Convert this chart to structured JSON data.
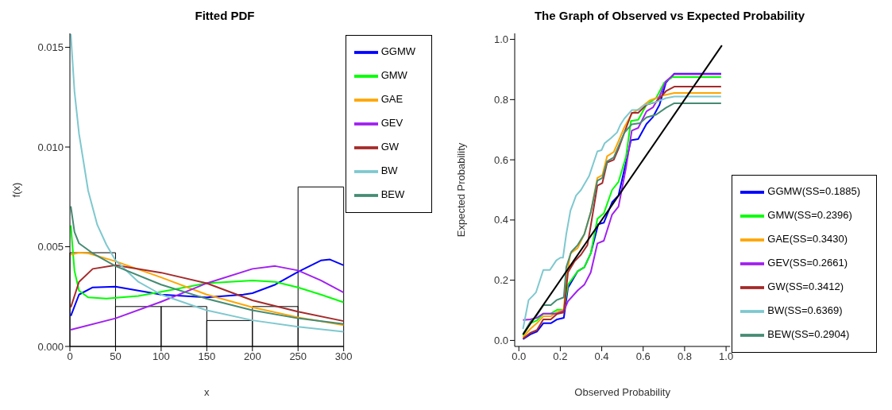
{
  "chart_data": [
    {
      "type": "histogram",
      "title": "Fitted PDF",
      "xlabel": "x",
      "ylabel": "f(x)",
      "bins": [
        0,
        50,
        100,
        150,
        200,
        250,
        300
      ],
      "values": [
        0.0047,
        0.002,
        0.002,
        0.0013,
        0.002,
        0.008
      ],
      "color": "#000000",
      "xlim": [
        0,
        300
      ],
      "xticks": [
        0,
        50,
        100,
        150,
        200,
        250,
        300
      ],
      "ylim": [
        0,
        0.0157
      ],
      "yticks": [
        {
          "value": 0,
          "label": "0.000"
        },
        {
          "value": 0.005,
          "label": "0.005"
        },
        {
          "value": 0.01,
          "label": "0.010"
        },
        {
          "value": 0.015,
          "label": "0.015"
        }
      ],
      "legend": "top right",
      "series": [
        {
          "type": "line",
          "name": "GGMW",
          "color": "#0000ff",
          "x": [
            1,
            10,
            25,
            50,
            100,
            150,
            190,
            200,
            225,
            250,
            275,
            285,
            300
          ],
          "values": [
            0.00153,
            0.0026,
            0.00296,
            0.003,
            0.0026,
            0.00246,
            0.0026,
            0.00267,
            0.0031,
            0.00374,
            0.00431,
            0.00436,
            0.00407
          ]
        },
        {
          "type": "line",
          "name": "GMW",
          "color": "#00ff00",
          "x": [
            1,
            5,
            10,
            20,
            40,
            75,
            100,
            150,
            200,
            225,
            250,
            275,
            300
          ],
          "values": [
            0.00607,
            0.0038,
            0.0028,
            0.00246,
            0.0024,
            0.00253,
            0.00274,
            0.00317,
            0.00331,
            0.00324,
            0.00296,
            0.0026,
            0.00221
          ]
        },
        {
          "type": "line",
          "name": "GAE",
          "color": "#ffa500",
          "x": [
            1,
            10,
            20,
            50,
            100,
            150,
            200,
            250,
            300
          ],
          "values": [
            0.0046,
            0.0047,
            0.00467,
            0.00427,
            0.00346,
            0.0026,
            0.00196,
            0.00146,
            0.00107
          ]
        },
        {
          "type": "line",
          "name": "GEV",
          "color": "#a020f0",
          "x": [
            1,
            50,
            100,
            150,
            200,
            225,
            250,
            275,
            300
          ],
          "values": [
            0.00084,
            0.00141,
            0.00224,
            0.00317,
            0.00389,
            0.00403,
            0.00381,
            0.00331,
            0.0027
          ]
        },
        {
          "type": "line",
          "name": "GW",
          "color": "#a52a2a",
          "x": [
            1,
            10,
            25,
            50,
            100,
            150,
            200,
            250,
            300
          ],
          "values": [
            0.00196,
            0.00324,
            0.00389,
            0.00407,
            0.0037,
            0.00317,
            0.00231,
            0.00174,
            0.00127
          ]
        },
        {
          "type": "line",
          "name": "BW",
          "color": "#7ec8cf",
          "x": [
            1,
            5,
            10,
            20,
            30,
            40,
            50,
            75,
            100,
            150,
            200,
            250,
            300
          ],
          "values": [
            0.01567,
            0.0128,
            0.01067,
            0.00781,
            0.0061,
            0.0051,
            0.00431,
            0.00324,
            0.0026,
            0.00181,
            0.00131,
            0.00099,
            0.00074
          ]
        },
        {
          "type": "line",
          "name": "BEW",
          "color": "#458b74",
          "x": [
            1,
            5,
            10,
            25,
            50,
            100,
            150,
            200,
            250,
            300
          ],
          "values": [
            0.00703,
            0.00574,
            0.00517,
            0.00467,
            0.00403,
            0.0031,
            0.00239,
            0.00181,
            0.00141,
            0.00113
          ]
        }
      ]
    },
    {
      "type": "line",
      "title": "The Graph of Observed vs Expected Probability",
      "xlabel": "Observed Probability",
      "ylabel": "Expected Probability",
      "xlim": [
        -0.02,
        1.02
      ],
      "xticks": [
        {
          "value": 0,
          "label": "0.0"
        },
        {
          "value": 0.2,
          "label": "0.2"
        },
        {
          "value": 0.4,
          "label": "0.4"
        },
        {
          "value": 0.6,
          "label": "0.6"
        },
        {
          "value": 0.8,
          "label": "0.8"
        },
        {
          "value": 1,
          "label": "1.0"
        }
      ],
      "ylim": [
        -0.02,
        1.02
      ],
      "yticks": [
        {
          "value": 0,
          "label": "0.0"
        },
        {
          "value": 0.2,
          "label": "0.2"
        },
        {
          "value": 0.4,
          "label": "0.4"
        },
        {
          "value": 0.6,
          "label": "0.6"
        },
        {
          "value": 0.8,
          "label": "0.8"
        },
        {
          "value": 1,
          "label": "1.0"
        }
      ],
      "legend": "bottom right",
      "series": [
        {
          "name": "GGMW(SS=0.1885)",
          "color": "#0000ff",
          "x": [
            0.02,
            0.055,
            0.087,
            0.118,
            0.154,
            0.185,
            0.217,
            0.237,
            0.284,
            0.316,
            0.347,
            0.383,
            0.41,
            0.45,
            0.481,
            0.517,
            0.541,
            0.576,
            0.616,
            0.647,
            0.679,
            0.71,
            0.75,
            0.976
          ],
          "values": [
            0.004,
            0.02,
            0.029,
            0.057,
            0.057,
            0.07,
            0.075,
            0.175,
            0.23,
            0.243,
            0.289,
            0.386,
            0.391,
            0.459,
            0.482,
            0.591,
            0.665,
            0.669,
            0.719,
            0.742,
            0.783,
            0.857,
            0.886,
            0.886
          ]
        },
        {
          "name": "GMW(SS=0.2396)",
          "color": "#00ff00",
          "x": [
            0.02,
            0.055,
            0.087,
            0.118,
            0.154,
            0.185,
            0.217,
            0.237,
            0.284,
            0.316,
            0.347,
            0.379,
            0.41,
            0.45,
            0.481,
            0.517,
            0.541,
            0.576,
            0.616,
            0.663,
            0.702,
            0.742,
            0.976
          ],
          "values": [
            0.016,
            0.057,
            0.066,
            0.089,
            0.089,
            0.102,
            0.102,
            0.185,
            0.23,
            0.243,
            0.289,
            0.404,
            0.422,
            0.5,
            0.527,
            0.61,
            0.729,
            0.733,
            0.783,
            0.806,
            0.857,
            0.875,
            0.875
          ]
        },
        {
          "name": "GAE(SS=0.3430)",
          "color": "#ffa500",
          "x": [
            0.02,
            0.055,
            0.087,
            0.118,
            0.154,
            0.182,
            0.217,
            0.229,
            0.249,
            0.284,
            0.316,
            0.347,
            0.379,
            0.403,
            0.426,
            0.458,
            0.481,
            0.509,
            0.545,
            0.584,
            0.631,
            0.702,
            0.75,
            0.976
          ],
          "values": [
            0.011,
            0.038,
            0.057,
            0.08,
            0.08,
            0.093,
            0.103,
            0.207,
            0.289,
            0.307,
            0.353,
            0.426,
            0.54,
            0.549,
            0.612,
            0.626,
            0.662,
            0.708,
            0.753,
            0.771,
            0.797,
            0.815,
            0.822,
            0.822
          ]
        },
        {
          "name": "GEV(SS=0.2661)",
          "color": "#a020f0",
          "x": [
            0.02,
            0.055,
            0.087,
            0.118,
            0.154,
            0.185,
            0.217,
            0.237,
            0.284,
            0.316,
            0.347,
            0.379,
            0.41,
            0.45,
            0.481,
            0.517,
            0.545,
            0.576,
            0.616,
            0.647,
            0.679,
            0.71,
            0.75,
            0.976
          ],
          "values": [
            0.068,
            0.07,
            0.075,
            0.089,
            0.089,
            0.089,
            0.098,
            0.13,
            0.166,
            0.185,
            0.226,
            0.322,
            0.331,
            0.418,
            0.445,
            0.573,
            0.697,
            0.706,
            0.761,
            0.774,
            0.811,
            0.861,
            0.884,
            0.884
          ]
        },
        {
          "name": "GW(SS=0.3412)",
          "color": "#a52a2a",
          "x": [
            0.02,
            0.055,
            0.087,
            0.118,
            0.154,
            0.185,
            0.217,
            0.237,
            0.268,
            0.3,
            0.331,
            0.347,
            0.379,
            0.403,
            0.426,
            0.458,
            0.481,
            0.509,
            0.545,
            0.576,
            0.616,
            0.663,
            0.71,
            0.75,
            0.976
          ],
          "values": [
            0.006,
            0.025,
            0.034,
            0.07,
            0.07,
            0.088,
            0.093,
            0.226,
            0.262,
            0.285,
            0.317,
            0.381,
            0.514,
            0.523,
            0.591,
            0.6,
            0.637,
            0.69,
            0.756,
            0.756,
            0.783,
            0.792,
            0.828,
            0.843,
            0.843
          ]
        },
        {
          "name": "BW(SS=0.6369)",
          "color": "#7ec8cf",
          "x": [
            0.02,
            0.047,
            0.067,
            0.083,
            0.118,
            0.15,
            0.181,
            0.201,
            0.213,
            0.229,
            0.249,
            0.276,
            0.3,
            0.339,
            0.379,
            0.399,
            0.414,
            0.446,
            0.474,
            0.489,
            0.509,
            0.545,
            0.576,
            0.608,
            0.663,
            0.71,
            0.75,
            0.976
          ],
          "values": [
            0.038,
            0.134,
            0.148,
            0.16,
            0.234,
            0.234,
            0.266,
            0.275,
            0.275,
            0.354,
            0.431,
            0.481,
            0.5,
            0.546,
            0.628,
            0.632,
            0.655,
            0.673,
            0.691,
            0.715,
            0.737,
            0.765,
            0.765,
            0.783,
            0.792,
            0.805,
            0.81,
            0.81
          ]
        },
        {
          "name": "BEW(SS=0.2904)",
          "color": "#458b74",
          "x": [
            0.02,
            0.055,
            0.083,
            0.118,
            0.154,
            0.182,
            0.217,
            0.229,
            0.253,
            0.284,
            0.316,
            0.347,
            0.379,
            0.403,
            0.426,
            0.458,
            0.481,
            0.509,
            0.545,
            0.584,
            0.616,
            0.663,
            0.71,
            0.75,
            0.976
          ],
          "values": [
            0.02,
            0.061,
            0.08,
            0.117,
            0.117,
            0.134,
            0.143,
            0.244,
            0.294,
            0.317,
            0.353,
            0.426,
            0.531,
            0.54,
            0.595,
            0.608,
            0.645,
            0.69,
            0.718,
            0.722,
            0.741,
            0.75,
            0.773,
            0.788,
            0.788
          ]
        },
        {
          "color": "#000000",
          "x": [
            0.02,
            0.98
          ],
          "values": [
            0.02,
            0.98
          ]
        }
      ]
    }
  ]
}
